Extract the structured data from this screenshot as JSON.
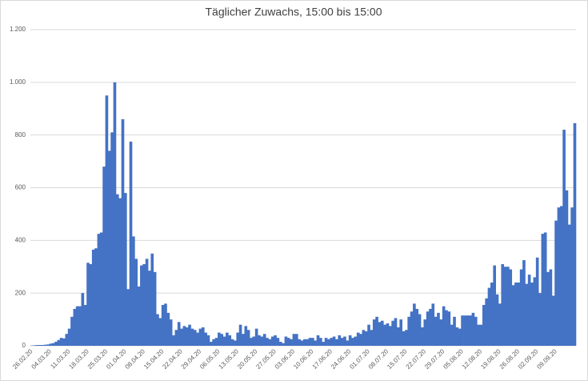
{
  "chart_data": {
    "type": "bar",
    "title": "Täglicher Zuwachs, 15:00 bis 15:00",
    "categories": [
      "26.02.20",
      null,
      null,
      null,
      null,
      null,
      null,
      "04.03.20",
      null,
      null,
      null,
      null,
      null,
      null,
      "11.03.20",
      null,
      null,
      null,
      null,
      null,
      null,
      "18.03.20",
      null,
      null,
      null,
      null,
      null,
      null,
      "25.03.20",
      null,
      null,
      null,
      null,
      null,
      null,
      "01.04.20",
      null,
      null,
      null,
      null,
      null,
      null,
      "08.04.20",
      null,
      null,
      null,
      null,
      null,
      null,
      "15.04.20",
      null,
      null,
      null,
      null,
      null,
      null,
      "22.04.20",
      null,
      null,
      null,
      null,
      null,
      null,
      "29.04.20",
      null,
      null,
      null,
      null,
      null,
      null,
      "06.05.20",
      null,
      null,
      null,
      null,
      null,
      null,
      "13.05.20",
      null,
      null,
      null,
      null,
      null,
      null,
      "20.05.20",
      null,
      null,
      null,
      null,
      null,
      null,
      "27.05.20",
      null,
      null,
      null,
      null,
      null,
      null,
      "03.06.20",
      null,
      null,
      null,
      null,
      null,
      null,
      "10.06.20",
      null,
      null,
      null,
      null,
      null,
      null,
      "17.06.20",
      null,
      null,
      null,
      null,
      null,
      null,
      "24.06.20",
      null,
      null,
      null,
      null,
      null,
      null,
      "01.07.20",
      null,
      null,
      null,
      null,
      null,
      null,
      "08.07.20",
      null,
      null,
      null,
      null,
      null,
      null,
      "15.07.20",
      null,
      null,
      null,
      null,
      null,
      null,
      "22.07.20",
      null,
      null,
      null,
      null,
      null,
      null,
      "29.07.20",
      null,
      null,
      null,
      null,
      null,
      null,
      "05.08.20",
      null,
      null,
      null,
      null,
      null,
      null,
      "12.08.20",
      null,
      null,
      null,
      null,
      null,
      null,
      "19.08.20",
      null,
      null,
      null,
      null,
      null,
      null,
      "26.08.20",
      null,
      null,
      null,
      null,
      null,
      null,
      "02.09.20",
      null,
      null,
      null,
      null,
      null,
      null,
      "09.09.20",
      null,
      null,
      null,
      null,
      null,
      null,
      null
    ],
    "values": [
      1,
      2,
      3,
      3,
      3,
      4,
      5,
      8,
      10,
      15,
      22,
      30,
      28,
      45,
      65,
      110,
      140,
      150,
      150,
      200,
      155,
      315,
      310,
      365,
      370,
      425,
      430,
      680,
      950,
      740,
      810,
      1000,
      575,
      560,
      860,
      580,
      215,
      775,
      415,
      330,
      225,
      305,
      310,
      330,
      285,
      350,
      280,
      120,
      105,
      155,
      160,
      125,
      100,
      40,
      60,
      90,
      65,
      75,
      70,
      80,
      65,
      60,
      50,
      65,
      70,
      50,
      40,
      15,
      25,
      30,
      50,
      45,
      35,
      50,
      40,
      25,
      20,
      50,
      80,
      45,
      75,
      60,
      30,
      35,
      65,
      40,
      35,
      45,
      30,
      25,
      35,
      40,
      30,
      15,
      10,
      35,
      30,
      25,
      45,
      45,
      25,
      20,
      25,
      25,
      30,
      30,
      20,
      40,
      30,
      15,
      30,
      25,
      30,
      35,
      25,
      40,
      30,
      35,
      20,
      40,
      30,
      35,
      50,
      45,
      60,
      55,
      80,
      60,
      100,
      110,
      90,
      95,
      80,
      85,
      75,
      95,
      105,
      70,
      100,
      55,
      60,
      110,
      130,
      160,
      140,
      120,
      70,
      100,
      130,
      140,
      160,
      110,
      125,
      100,
      150,
      135,
      130,
      80,
      110,
      70,
      65,
      115,
      115,
      115,
      115,
      125,
      110,
      80,
      80,
      155,
      180,
      220,
      240,
      305,
      195,
      160,
      310,
      300,
      300,
      290,
      230,
      240,
      240,
      290,
      325,
      235,
      270,
      240,
      260,
      335,
      200,
      425,
      430,
      280,
      290,
      190,
      475,
      525,
      530,
      820,
      590,
      460,
      525,
      845
    ],
    "color": "#4472c4",
    "ylim": [
      0,
      1200
    ],
    "yticks": [
      0,
      200,
      400,
      600,
      800,
      {
        "value": 1000,
        "label": "1.000"
      },
      {
        "value": 1200,
        "label": "1.200"
      }
    ],
    "grid": true
  }
}
